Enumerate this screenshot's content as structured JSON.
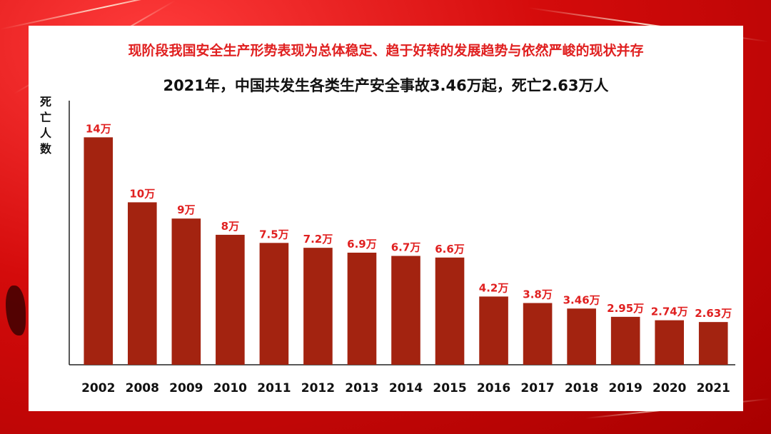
{
  "header": {
    "title": "现阶段我国安全生产形势表现为总体稳定、趋于好转的发展趋势与依然严峻的现状并存",
    "subtitle": "2021年，中国共发生各类生产安全事故3.46万起，死亡2.63万人"
  },
  "colors": {
    "bar": "#a32310",
    "value_label": "#e02020",
    "axis": "#222222",
    "headline": "#e02020"
  },
  "chart_data": {
    "type": "bar",
    "ylabel": "死亡人数",
    "categories": [
      "2002",
      "2008",
      "2009",
      "2010",
      "2011",
      "2012",
      "2013",
      "2014",
      "2015",
      "2016",
      "2017",
      "2018",
      "2019",
      "2020",
      "2021"
    ],
    "values": [
      14,
      10,
      9,
      8,
      7.5,
      7.2,
      6.9,
      6.7,
      6.6,
      4.2,
      3.8,
      3.46,
      2.95,
      2.74,
      2.63
    ],
    "value_labels": [
      "14万",
      "10万",
      "9万",
      "8万",
      "7.5万",
      "7.2万",
      "6.9万",
      "6.7万",
      "6.6万",
      "4.2万",
      "3.8万",
      "3.46万",
      "2.95万",
      "2.74万",
      "2.63万"
    ],
    "ylim": [
      0,
      14.5
    ],
    "grid": false,
    "legend": "none"
  }
}
